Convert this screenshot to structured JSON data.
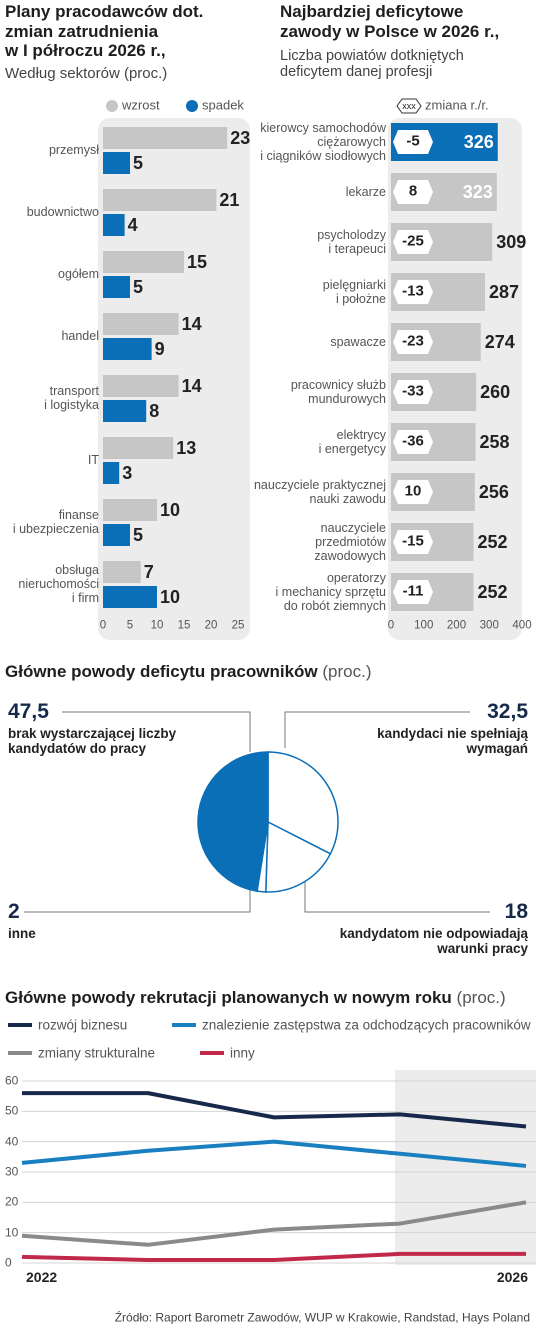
{
  "chart_data": [
    {
      "type": "bar",
      "orientation": "horizontal",
      "title": "Plany pracodawców dot.\nzmian zatrudnienia\nw I półroczu 2026 r.,",
      "subtitle": "Według sektorów (proc.)",
      "categories": [
        "przemysł",
        "budownictwo",
        "ogółem",
        "handel",
        "transport\ni logistyka",
        "IT",
        "finanse\ni ubezpieczenia",
        "obsługa\nnieruchomości\ni firm"
      ],
      "series": [
        {
          "name": "wzrost",
          "color": "#c6c6c6",
          "values": [
            23,
            21,
            15,
            14,
            14,
            13,
            10,
            7
          ]
        },
        {
          "name": "spadek",
          "color": "#0b6fb8",
          "values": [
            5,
            4,
            5,
            9,
            8,
            3,
            5,
            10
          ]
        }
      ],
      "xlim": [
        0,
        25
      ],
      "xticks": [
        0,
        5,
        10,
        15,
        20,
        25
      ]
    },
    {
      "type": "bar",
      "orientation": "horizontal",
      "title": "Najbardziej deficytowe\nzawody w Polsce w 2026 r.,",
      "subtitle": "Liczba powiatów dotkniętych\ndeficytem danej profesji",
      "categories": [
        "kierowcy samochodów\nciężarowych\ni ciągników siodłowych",
        "lekarze",
        "psycholodzy\ni terapeuci",
        "pielęgniarki\ni położne",
        "spawacze",
        "pracownicy służb\nmundurowych",
        "elektrycy\ni energetycy",
        "nauczyciele praktycznej\nnauki zawodu",
        "nauczyciele\nprzedmiotów\nzawodowych",
        "operatorzy\ni mechanicy sprzętu\ndo robót ziemnych"
      ],
      "values": [
        326,
        323,
        309,
        287,
        274,
        260,
        258,
        256,
        252,
        252
      ],
      "colors": [
        "#0b6fb8",
        "#c6c6c6",
        "#c6c6c6",
        "#c6c6c6",
        "#c6c6c6",
        "#c6c6c6",
        "#c6c6c6",
        "#c6c6c6",
        "#c6c6c6",
        "#c6c6c6"
      ],
      "changes": [
        -5,
        8,
        -25,
        -13,
        -23,
        -33,
        -36,
        10,
        -15,
        -11
      ],
      "legend": {
        "symbol": "xxx",
        "label": "zmiana r./r."
      },
      "xlim": [
        0,
        400
      ],
      "xticks": [
        0,
        100,
        200,
        300,
        400
      ]
    },
    {
      "type": "pie",
      "title": "Główne powody deficytu pracowników",
      "unit": "(proc.)",
      "categories": [
        "kandydaci nie spełniają\nwymagań",
        "kandydatom nie odpowiadają\nwarunki pracy",
        "inne",
        "brak wystarczającej liczby\nkandydatów do pracy"
      ],
      "values": [
        32.5,
        18,
        2,
        47.5
      ],
      "value_labels": [
        "32,5",
        "18",
        "2",
        "47,5"
      ],
      "colors": [
        "#ffffff",
        "#ffffff",
        "#ffffff",
        "#0b6fb8"
      ],
      "stroke": "#0b6fb8"
    },
    {
      "type": "line",
      "title": "Główne powody rekrutacji planowanych w nowym roku",
      "unit": "(proc.)",
      "categories": [
        "2022",
        null,
        null,
        null,
        "2026"
      ],
      "series": [
        {
          "name": "rozwój biznesu",
          "color": "#17294a",
          "values": [
            56,
            56,
            48,
            49,
            45
          ]
        },
        {
          "name": "znalezienie zastępstwa za odchodzących pracowników",
          "color": "#1a7fc1",
          "values": [
            33,
            37,
            40,
            36,
            32
          ]
        },
        {
          "name": "zmiany strukturalne",
          "color": "#8a8a8a",
          "values": [
            9,
            6,
            11,
            13,
            20
          ]
        },
        {
          "name": "inny",
          "color": "#c0294a",
          "values": [
            2,
            1,
            1,
            3,
            3
          ]
        }
      ],
      "ylim": [
        0,
        60
      ],
      "yticks": [
        0,
        10,
        20,
        30,
        40,
        50,
        60
      ],
      "grid": true
    }
  ],
  "source": "Źródło: Raport Barometr Zawodów, WUP w Krakowie, Randstad, Hays Poland"
}
